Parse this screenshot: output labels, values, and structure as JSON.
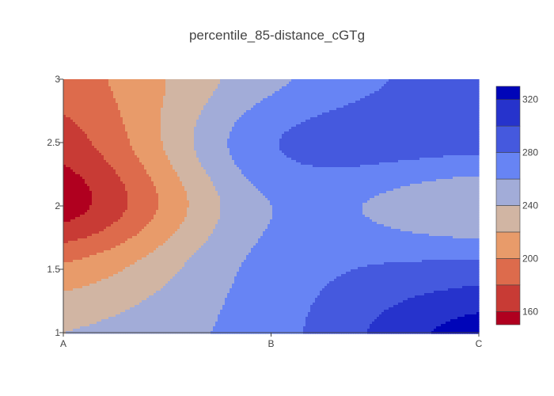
{
  "chart_data": {
    "type": "contour",
    "title": "percentile_85-distance_cGTg",
    "x": [
      "A",
      "B",
      "C"
    ],
    "y": [
      1,
      1.5,
      2,
      2.5,
      3
    ],
    "z": [
      [
        240,
        272,
        330
      ],
      [
        205,
        268,
        288
      ],
      [
        150,
        260,
        242
      ],
      [
        170,
        278,
        288
      ],
      [
        190,
        255,
        292
      ]
    ],
    "ylim": [
      1,
      3
    ],
    "y_ticks": [
      "1",
      "1.5",
      "2",
      "2.5",
      "3"
    ],
    "contour_levels": [
      150,
      160,
      180,
      200,
      220,
      240,
      260,
      280,
      300,
      320,
      330
    ],
    "fill_colors": [
      "#b0001f",
      "#c83b35",
      "#dd6b4c",
      "#e89b6a",
      "#d1b5a3",
      "#a2acd8",
      "#6784f4",
      "#4559de",
      "#2633cc",
      "#0005b8"
    ],
    "colorbar": {
      "ticks": [
        160,
        200,
        240,
        280,
        320
      ],
      "range": [
        150,
        330
      ]
    }
  }
}
